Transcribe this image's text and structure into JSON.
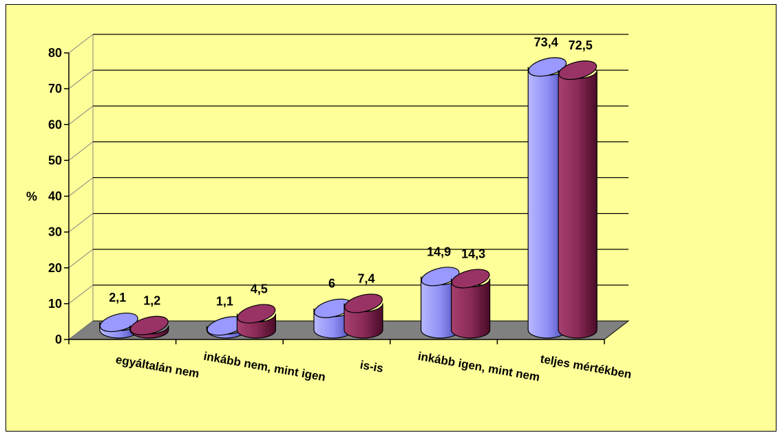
{
  "chart_data": {
    "type": "bar",
    "ylabel": "%",
    "ylim": [
      0,
      80
    ],
    "y_ticks": [
      "0",
      "10",
      "20",
      "30",
      "40",
      "50",
      "60",
      "70",
      "80"
    ],
    "categories": [
      "egyáltalán nem",
      "inkább nem, mint igen",
      "is-is",
      "inkább igen, mint nem",
      "teljes mértékben"
    ],
    "series": [
      {
        "values": [
          2.1,
          1.1,
          6,
          14.9,
          73.4
        ],
        "labels": [
          "2,1",
          "1,1",
          "6",
          "14,9",
          "73,4"
        ],
        "color": "#9999ff"
      },
      {
        "values": [
          1.2,
          4.5,
          7.4,
          14.3,
          72.5
        ],
        "labels": [
          "1,2",
          "4,5",
          "7,4",
          "14,3",
          "72,5"
        ],
        "color": "#993366"
      }
    ],
    "grid": true,
    "legend": "none",
    "style": "3d-cylinder",
    "colors": {
      "background": "#ffff99",
      "floor": "#808080",
      "gridline": "#000000"
    }
  }
}
